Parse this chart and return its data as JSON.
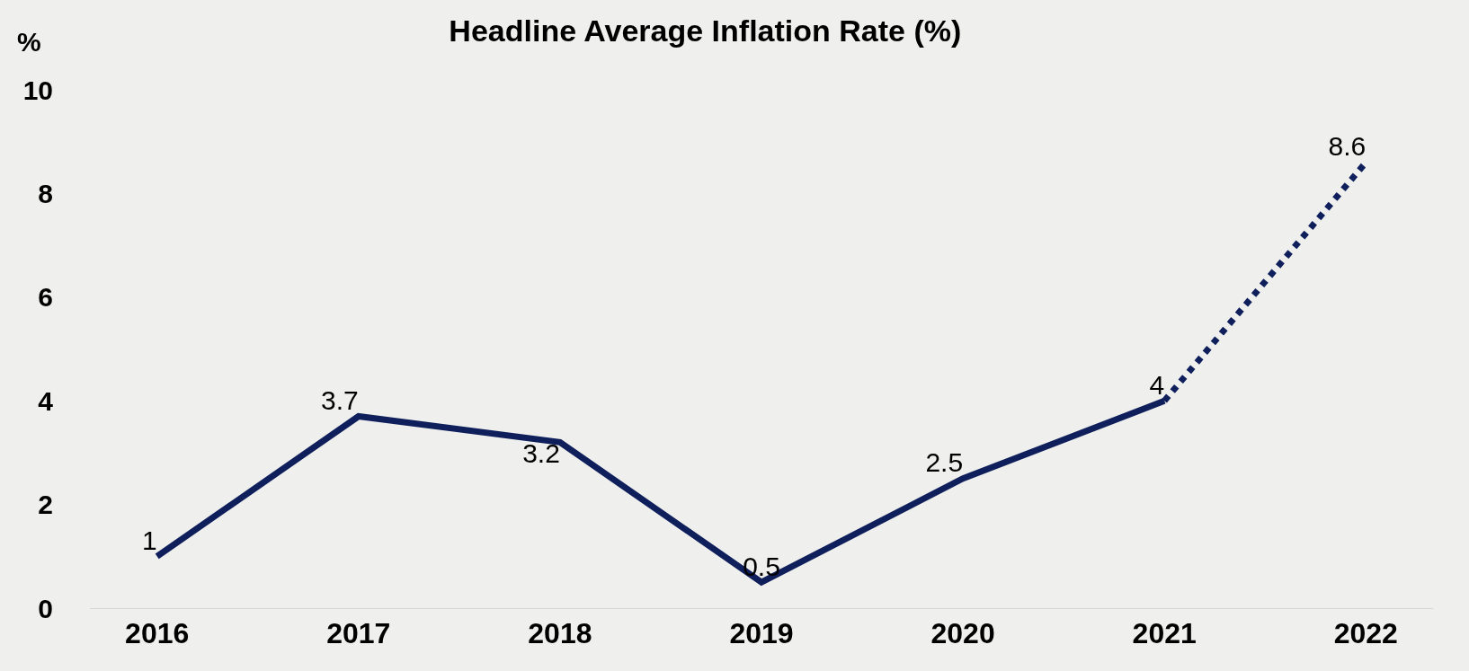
{
  "chart_data": {
    "type": "line",
    "title": "Headline Average Inflation Rate (%)",
    "ylabel": "%",
    "categories": [
      "2016",
      "2017",
      "2018",
      "2019",
      "2020",
      "2021",
      "2022"
    ],
    "series": [
      {
        "color": "#0e1f5b",
        "line_style": "solid",
        "values": [
          1,
          3.7,
          3.2,
          0.5,
          2.5,
          4,
          null
        ],
        "value_labels": [
          "1",
          "3.7",
          "3.2",
          "0.5",
          "2.5",
          "4",
          null
        ]
      },
      {
        "color": "#0e1f5b",
        "line_style": "dotted",
        "values": [
          null,
          null,
          null,
          null,
          null,
          4,
          8.6
        ],
        "value_labels": [
          null,
          null,
          null,
          null,
          null,
          null,
          "8.6"
        ]
      }
    ],
    "ylim": [
      0,
      10
    ],
    "yticks": [
      0,
      2,
      4,
      6,
      8,
      10
    ],
    "grid": false,
    "marker": "none"
  }
}
